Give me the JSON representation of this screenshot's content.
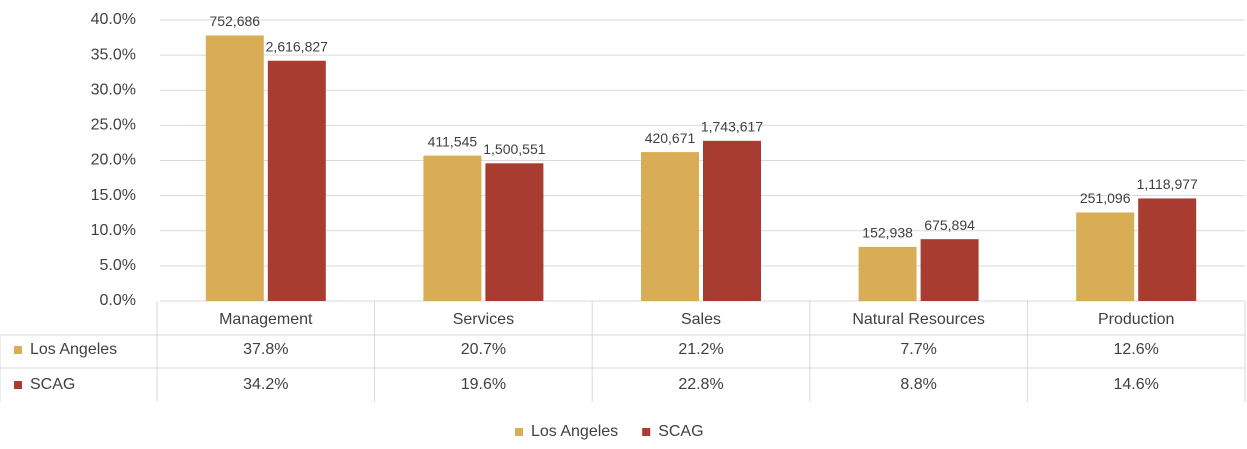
{
  "chart_data": {
    "type": "bar",
    "categories": [
      "Management",
      "Services",
      "Sales",
      "Natural Resources",
      "Production"
    ],
    "series": [
      {
        "name": "Los Angeles",
        "color": "#d9ad56",
        "values": [
          37.8,
          20.7,
          21.2,
          7.7,
          12.6
        ],
        "value_labels": [
          "37.8%",
          "20.7%",
          "21.2%",
          "7.7%",
          "12.6%"
        ],
        "count_labels": [
          "752,686",
          "411,545",
          "420,671",
          "152,938",
          "251,096"
        ]
      },
      {
        "name": "SCAG",
        "color": "#a93c30",
        "values": [
          34.2,
          19.6,
          22.8,
          8.8,
          14.6
        ],
        "value_labels": [
          "34.2%",
          "19.6%",
          "22.8%",
          "8.8%",
          "14.6%"
        ],
        "count_labels": [
          "2,616,827",
          "1,500,551",
          "1,743,617",
          "675,894",
          "1,118,977"
        ]
      }
    ],
    "ylim": [
      0,
      40
    ],
    "yticks": [
      {
        "value": 0,
        "label": "0.0%"
      },
      {
        "value": 5,
        "label": "5.0%"
      },
      {
        "value": 10,
        "label": "10.0%"
      },
      {
        "value": 15,
        "label": "15.0%"
      },
      {
        "value": 20,
        "label": "20.0%"
      },
      {
        "value": 25,
        "label": "25.0%"
      },
      {
        "value": 30,
        "label": "30.0%"
      },
      {
        "value": 35,
        "label": "35.0%"
      },
      {
        "value": 40,
        "label": "40.0%"
      }
    ],
    "grid": true,
    "legend": "bottom",
    "data_table": true
  }
}
